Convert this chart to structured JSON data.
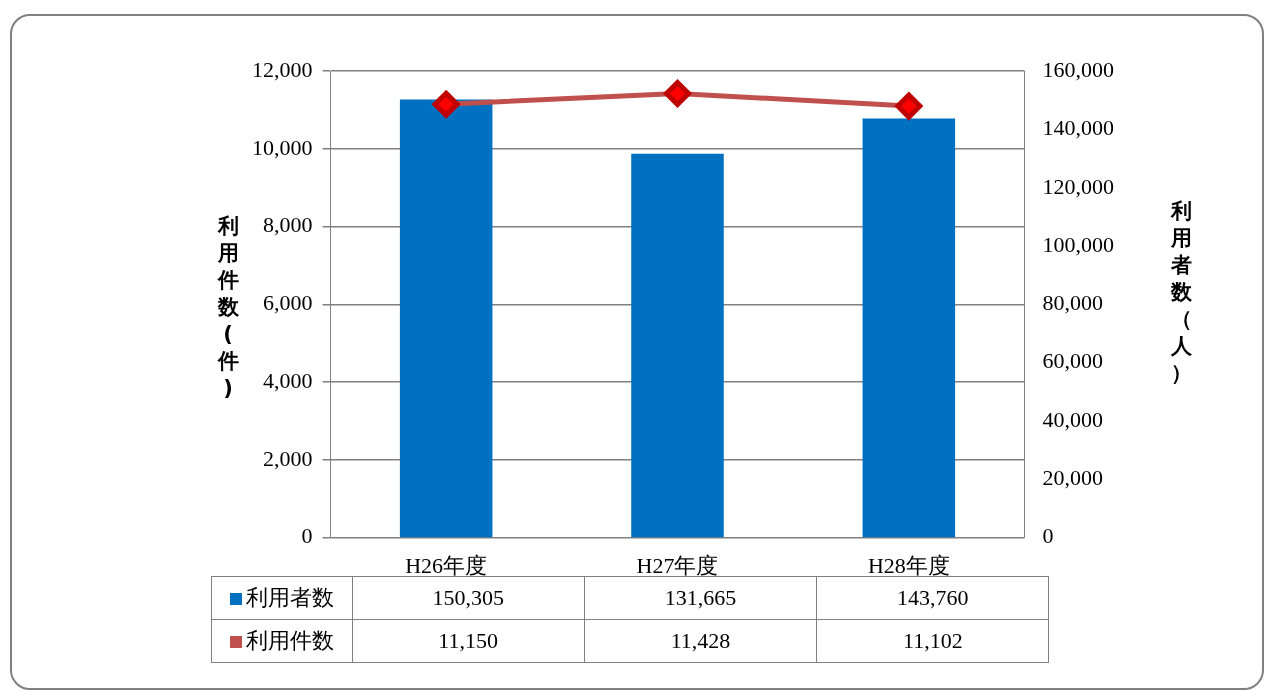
{
  "chart_data": {
    "type": "bar",
    "ylabel": "利用件数(件)",
    "y2label": "利用者数（人）",
    "categories": [
      "H26年度",
      "H27年度",
      "H28年度"
    ],
    "series": [
      {
        "name": "利用者数",
        "axis": "y2",
        "color": "#0070c0",
        "values": [
          150305,
          131665,
          143760
        ],
        "value_labels": [
          "150,305",
          "131,665",
          "143,760"
        ]
      },
      {
        "name": "利用件数",
        "type": "line",
        "axis": "y",
        "color": "#c0504d",
        "marker": "diamond",
        "values": [
          11150,
          11428,
          11102
        ],
        "value_labels": [
          "11,150",
          "11,428",
          "11,102"
        ]
      }
    ],
    "ylim": [
      0,
      12000
    ],
    "yticks": [
      {
        "value": 0,
        "label": "0"
      },
      {
        "value": 2000,
        "label": "2,000"
      },
      {
        "value": 4000,
        "label": "4,000"
      },
      {
        "value": 6000,
        "label": "6,000"
      },
      {
        "value": 8000,
        "label": "8,000"
      },
      {
        "value": 10000,
        "label": "10,000"
      },
      {
        "value": 12000,
        "label": "12,000"
      }
    ],
    "y2lim": [
      0,
      160000
    ],
    "y2ticks": [
      {
        "value": 0,
        "label": "0"
      },
      {
        "value": 20000,
        "label": "20,000"
      },
      {
        "value": 40000,
        "label": "40,000"
      },
      {
        "value": 60000,
        "label": "60,000"
      },
      {
        "value": 80000,
        "label": "80,000"
      },
      {
        "value": 100000,
        "label": "100,000"
      },
      {
        "value": 120000,
        "label": "120,000"
      },
      {
        "value": 140000,
        "label": "140,000"
      },
      {
        "value": 160000,
        "label": "160,000"
      }
    ],
    "grid": "y",
    "legend": "bottom left",
    "data_labels": true
  }
}
